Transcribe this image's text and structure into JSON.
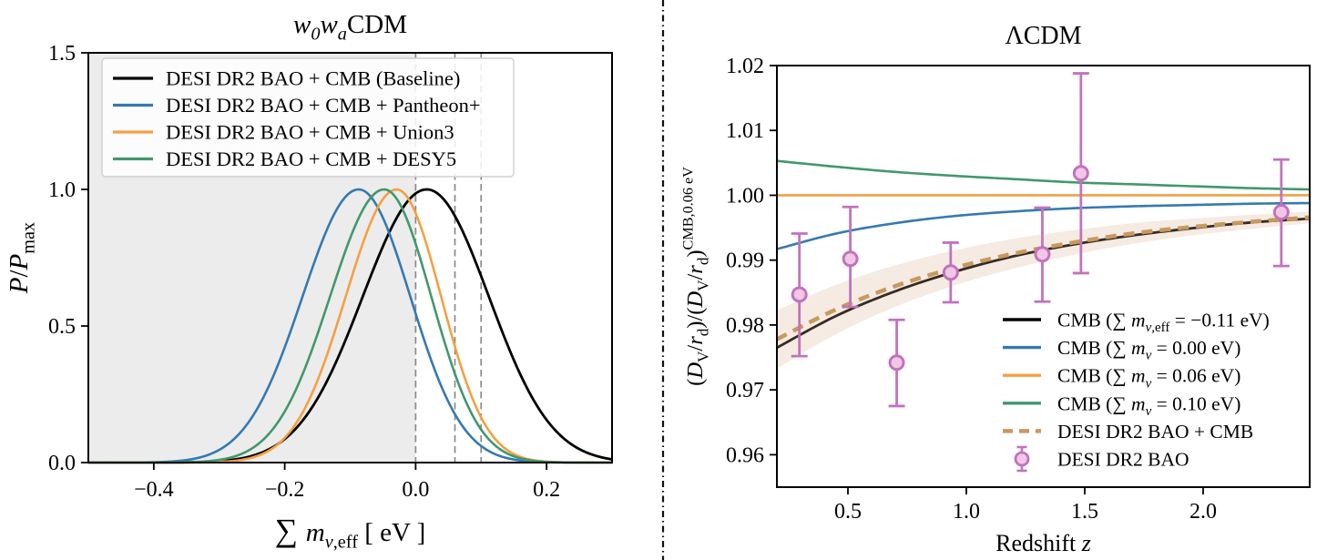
{
  "page": {
    "background": "#ffffff",
    "divider": {
      "color": "#111111",
      "style": "dash-dot"
    }
  },
  "chart_data": [
    {
      "id": "left",
      "type": "line",
      "title_text": "w0waCDM",
      "title_segments": [
        [
          "w",
          "i"
        ],
        [
          "0",
          "subi"
        ],
        [
          "w",
          "i"
        ],
        [
          "a",
          "subi"
        ],
        [
          "CDM",
          "n"
        ]
      ],
      "xlabel_text": "∑ m_nu,eff [eV]",
      "xlabel_segments": [
        [
          "∑ ",
          "big"
        ],
        [
          "m",
          "i"
        ],
        [
          "ν",
          "subi"
        ],
        [
          ",eff",
          "sub"
        ],
        [
          " [ eV ]",
          "n"
        ]
      ],
      "ylabel_text": "P/P_max",
      "ylabel_segments": [
        [
          "P",
          "i"
        ],
        [
          "/",
          "n"
        ],
        [
          "P",
          "i"
        ],
        [
          "max",
          "sub"
        ]
      ],
      "xlim": [
        -0.5,
        0.3
      ],
      "ylim": [
        0.0,
        1.5
      ],
      "x_ticks": [
        {
          "v": -0.4,
          "label": "−0.4"
        },
        {
          "v": -0.2,
          "label": "−0.2"
        },
        {
          "v": 0.0,
          "label": "0.0"
        },
        {
          "v": 0.2,
          "label": "0.2"
        }
      ],
      "y_ticks": [
        {
          "v": 0.0,
          "label": "0.0"
        },
        {
          "v": 0.5,
          "label": "0.5"
        },
        {
          "v": 1.0,
          "label": "1.0"
        },
        {
          "v": 1.5,
          "label": "1.5"
        }
      ],
      "shaded_region": {
        "from": -0.5,
        "to": 0.0,
        "color": "#ECECEC"
      },
      "vlines": {
        "values": [
          0.0,
          0.06,
          0.1
        ],
        "color": "#8A8A8A"
      },
      "curves": [
        {
          "name": "DESI DR2 BAO + CMB (Baseline)",
          "color": "#000000",
          "peak_x": 0.017,
          "sigma_left": 0.098,
          "sigma_right": 0.095,
          "peak_y": 1.0
        },
        {
          "name": "DESI DR2 BAO + CMB + Pantheon+",
          "color": "#3579B1",
          "peak_x": -0.087,
          "sigma_left": 0.086,
          "sigma_right": 0.079,
          "peak_y": 1.0
        },
        {
          "name": "DESI DR2 BAO + CMB + Union3",
          "color": "#F4A042",
          "peak_x": -0.029,
          "sigma_left": 0.078,
          "sigma_right": 0.068,
          "peak_y": 1.0
        },
        {
          "name": "DESI DR2 BAO + CMB + DESY5",
          "color": "#42976F",
          "peak_x": -0.048,
          "sigma_left": 0.083,
          "sigma_right": 0.072,
          "peak_y": 1.0
        }
      ],
      "legend": {
        "position": "upper-left",
        "frame": true,
        "labels": [
          "DESI DR2 BAO + CMB (Baseline)",
          "DESI DR2 BAO + CMB + Pantheon+",
          "DESI DR2 BAO + CMB + Union3",
          "DESI DR2 BAO + CMB + DESY5"
        ]
      }
    },
    {
      "id": "right",
      "type": "line+scatter",
      "title_text": "ΛCDM",
      "title_segments": [
        [
          "ΛCDM",
          "n"
        ]
      ],
      "xlabel_text": "Redshift z",
      "xlabel_segments": [
        [
          "Redshift ",
          "n"
        ],
        [
          "z",
          "i"
        ]
      ],
      "ylabel_text": "(DV/rd)/(DV/rd)^CMB,0.06 eV",
      "ylabel_segments": [
        [
          "(",
          "n"
        ],
        [
          "D",
          "i"
        ],
        [
          "V",
          "sub"
        ],
        [
          "/",
          "n"
        ],
        [
          "r",
          "i"
        ],
        [
          "d",
          "sub"
        ],
        [
          ")/(",
          "n"
        ],
        [
          "D",
          "i"
        ],
        [
          "V",
          "sub"
        ],
        [
          "/",
          "n"
        ],
        [
          "r",
          "i"
        ],
        [
          "d",
          "sub"
        ],
        [
          ")",
          "n"
        ],
        [
          "CMB,0.06 eV",
          "sup"
        ]
      ],
      "xlim": [
        0.2,
        2.45
      ],
      "ylim": [
        0.955,
        1.02
      ],
      "x_ticks": [
        {
          "v": 0.5,
          "label": "0.5"
        },
        {
          "v": 1.0,
          "label": "1.0"
        },
        {
          "v": 1.5,
          "label": "1.5"
        },
        {
          "v": 2.0,
          "label": "2.0"
        }
      ],
      "y_ticks": [
        {
          "v": 0.96,
          "label": "0.96"
        },
        {
          "v": 0.97,
          "label": "0.97"
        },
        {
          "v": 0.98,
          "label": "0.98"
        },
        {
          "v": 0.99,
          "label": "0.99"
        },
        {
          "v": 1.0,
          "label": "1.00"
        },
        {
          "v": 1.01,
          "label": "1.01"
        },
        {
          "v": 1.02,
          "label": "1.02"
        }
      ],
      "z_grid": [
        0.2,
        0.45,
        0.7,
        0.95,
        1.2,
        1.45,
        1.7,
        1.95,
        2.2,
        2.45
      ],
      "series": [
        {
          "name": "CMB (∑m_nu,eff = −0.11 eV)",
          "color": "#000000",
          "style": "solid",
          "width": 2.8,
          "values": [
            0.9765,
            0.9814,
            0.9852,
            0.9882,
            0.9906,
            0.9924,
            0.9938,
            0.9949,
            0.9958,
            0.9964
          ]
        },
        {
          "name": "CMB (∑m_nu = 0.00 eV)",
          "color": "#3579B1",
          "style": "solid",
          "width": 2.6,
          "values": [
            0.9917,
            0.9941,
            0.9957,
            0.9968,
            0.9975,
            0.998,
            0.9983,
            0.9985,
            0.9987,
            0.9988
          ]
        },
        {
          "name": "CMB (∑m_nu = 0.06 eV)",
          "color": "#F4A042",
          "style": "solid",
          "width": 2.6,
          "values": [
            1.0,
            1.0,
            1.0,
            1.0,
            1.0,
            1.0,
            1.0,
            1.0,
            1.0,
            1.0
          ]
        },
        {
          "name": "CMB (∑m_nu = 0.10 eV)",
          "color": "#42976F",
          "style": "solid",
          "width": 2.6,
          "values": [
            1.0053,
            1.0044,
            1.0036,
            1.003,
            1.0025,
            1.002,
            1.0017,
            1.0014,
            1.0011,
            1.0009
          ]
        },
        {
          "name": "DESI DR2 BAO + CMB",
          "color": "#C8995F",
          "style": "dashed",
          "width": 4.5,
          "values": [
            0.9778,
            0.9824,
            0.986,
            0.9888,
            0.991,
            0.9927,
            0.9941,
            0.9951,
            0.9959,
            0.9966
          ],
          "band_half_width": [
            0.0045,
            0.0038,
            0.0032,
            0.0027,
            0.0023,
            0.0019,
            0.0016,
            0.0013,
            0.0011,
            0.0009
          ],
          "band_color": "#D9B08C",
          "band_opacity": 0.25
        }
      ],
      "points": {
        "name": "DESI DR2 BAO",
        "edge_color": "#C173BE",
        "fill_color": "#F2C6E5",
        "data": [
          {
            "z": 0.295,
            "y": 0.9847,
            "ep": 0.0094,
            "em": 0.0095
          },
          {
            "z": 0.51,
            "y": 0.9902,
            "ep": 0.008,
            "em": 0.0074
          },
          {
            "z": 0.706,
            "y": 0.9742,
            "ep": 0.0066,
            "em": 0.0067
          },
          {
            "z": 0.934,
            "y": 0.9881,
            "ep": 0.0046,
            "em": 0.0046
          },
          {
            "z": 1.321,
            "y": 0.9909,
            "ep": 0.0072,
            "em": 0.0073
          },
          {
            "z": 1.484,
            "y": 1.0034,
            "ep": 0.0154,
            "em": 0.0154
          },
          {
            "z": 2.33,
            "y": 0.9974,
            "ep": 0.0081,
            "em": 0.0083
          }
        ]
      },
      "legend": {
        "position": "lower-right",
        "frame": false,
        "entries": [
          {
            "swatch": "line",
            "color": "#000000",
            "segments": [
              [
                "CMB (∑ ",
                "n"
              ],
              [
                "m",
                "i"
              ],
              [
                "ν",
                "subi"
              ],
              [
                ",eff",
                "sub"
              ],
              [
                " = −0.11 eV)",
                "n"
              ]
            ]
          },
          {
            "swatch": "line",
            "color": "#3579B1",
            "segments": [
              [
                "CMB (∑ ",
                "n"
              ],
              [
                "m",
                "i"
              ],
              [
                "ν",
                "subi"
              ],
              [
                " = 0.00 eV)",
                "n"
              ]
            ]
          },
          {
            "swatch": "line",
            "color": "#F4A042",
            "segments": [
              [
                "CMB (∑ ",
                "n"
              ],
              [
                "m",
                "i"
              ],
              [
                "ν",
                "subi"
              ],
              [
                " = 0.06 eV)",
                "n"
              ]
            ]
          },
          {
            "swatch": "line",
            "color": "#42976F",
            "segments": [
              [
                "CMB (∑ ",
                "n"
              ],
              [
                "m",
                "i"
              ],
              [
                "ν",
                "subi"
              ],
              [
                " = 0.10 eV)",
                "n"
              ]
            ]
          },
          {
            "swatch": "dashed",
            "color": "#C8995F",
            "segments": [
              [
                "DESI DR2 BAO + CMB",
                "n"
              ]
            ]
          },
          {
            "swatch": "marker",
            "color": "#C173BE",
            "segments": [
              [
                "DESI DR2 BAO",
                "n"
              ]
            ]
          }
        ]
      }
    }
  ]
}
